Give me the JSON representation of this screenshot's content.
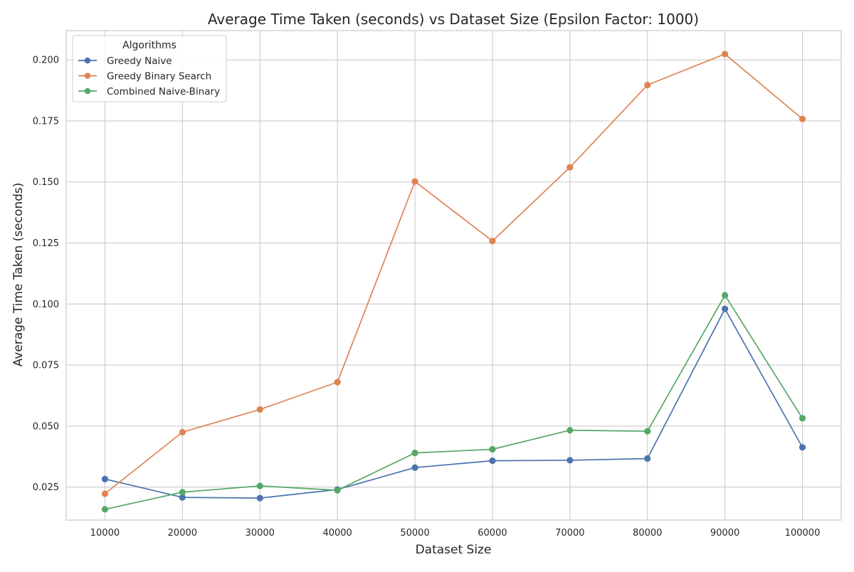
{
  "chart_data": {
    "type": "line",
    "title": "Average Time Taken (seconds) vs Dataset Size (Epsilon Factor: 1000)",
    "xlabel": "Dataset Size",
    "ylabel": "Average Time Taken (seconds)",
    "x": [
      10000,
      20000,
      30000,
      40000,
      50000,
      60000,
      70000,
      80000,
      90000,
      100000
    ],
    "x_tick_labels": [
      "10000",
      "20000",
      "30000",
      "40000",
      "50000",
      "60000",
      "70000",
      "80000",
      "90000",
      "100000"
    ],
    "y_ticks": [
      0.025,
      0.05,
      0.075,
      0.1,
      0.125,
      0.15,
      0.175,
      0.2
    ],
    "y_tick_labels": [
      "0.025",
      "0.050",
      "0.075",
      "0.100",
      "0.125",
      "0.150",
      "0.175",
      "0.200"
    ],
    "xlim": [
      5000,
      105000
    ],
    "ylim": [
      0.0115,
      0.212
    ],
    "grid": true,
    "legend": {
      "title": "Algorithms",
      "placement": "top-left"
    },
    "series": [
      {
        "name": "Greedy Naive",
        "color": "#4c72b0",
        "values": [
          0.0283,
          0.0208,
          0.0205,
          0.024,
          0.033,
          0.0358,
          0.036,
          0.0367,
          0.098,
          0.0413
        ]
      },
      {
        "name": "Greedy Binary Search",
        "color": "#dd8452",
        "values": [
          0.0223,
          0.0475,
          0.0568,
          0.068,
          0.1502,
          0.1258,
          0.156,
          0.1897,
          0.2024,
          0.1758
        ]
      },
      {
        "name": "Combined Naive-Binary",
        "color": "#55a868",
        "values": [
          0.0159,
          0.0229,
          0.0255,
          0.0237,
          0.039,
          0.0405,
          0.0483,
          0.0479,
          0.1036,
          0.0532
        ]
      }
    ]
  }
}
